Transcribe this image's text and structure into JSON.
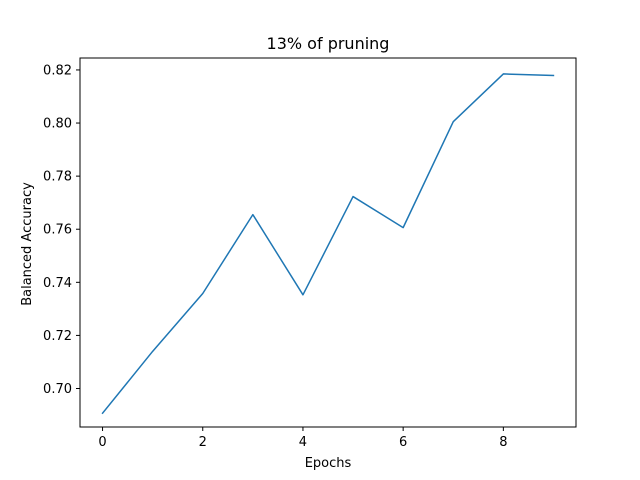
{
  "chart_data": {
    "type": "line",
    "title": "13% of pruning",
    "xlabel": "Epochs",
    "ylabel": "Balanced Accuracy",
    "xlim": [
      -0.45,
      9.45
    ],
    "ylim": [
      0.6855,
      0.8245
    ],
    "x_ticks": [
      0,
      2,
      4,
      6,
      8
    ],
    "x_tick_labels": [
      "0",
      "2",
      "4",
      "6",
      "8"
    ],
    "y_ticks": [
      0.7,
      0.72,
      0.74,
      0.76,
      0.78,
      0.8,
      0.82
    ],
    "y_tick_labels": [
      "0.70",
      "0.72",
      "0.74",
      "0.76",
      "0.78",
      "0.80",
      "0.82"
    ],
    "grid": false,
    "legend": false,
    "series": [
      {
        "color": "#1f77b4",
        "x": [
          0,
          1,
          2,
          3,
          4,
          5,
          6,
          7,
          8,
          9
        ],
        "values": [
          0.6907,
          0.714,
          0.7358,
          0.7655,
          0.7353,
          0.7723,
          0.7606,
          0.8005,
          0.8185,
          0.8179
        ]
      }
    ]
  }
}
